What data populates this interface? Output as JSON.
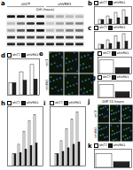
{
  "blot": {
    "title": "a",
    "groups": [
      "shCT",
      "shVRK1"
    ],
    "axis_label": "Diff (hours)",
    "bands": [
      [
        0.9,
        0.9,
        0.85,
        0.9,
        0.3,
        0.25,
        0.2,
        0.2
      ],
      [
        0.2,
        0.5,
        0.8,
        0.9,
        0.15,
        0.3,
        0.4,
        0.45
      ],
      [
        0.3,
        0.6,
        0.85,
        0.9,
        0.2,
        0.3,
        0.45,
        0.5
      ],
      [
        0.8,
        0.75,
        0.7,
        0.7,
        0.8,
        0.75,
        0.7,
        0.7
      ],
      [
        0.85,
        0.85,
        0.85,
        0.85,
        0.85,
        0.85,
        0.85,
        0.85
      ]
    ]
  },
  "micrographs": [
    {
      "title": "e",
      "rows": [
        "shCT",
        "shVRK1"
      ]
    },
    {
      "title": "j",
      "label": "Diff 72 hours",
      "rows": [
        "shCT",
        "shVRK1"
      ]
    }
  ],
  "chart_data": [
    {
      "type": "bar",
      "title": "b",
      "categories": [
        null,
        null,
        null,
        null
      ],
      "ylim": [
        0,
        4
      ],
      "tick_labels": false,
      "legend": "top",
      "series": [
        {
          "name": "shCT",
          "color": "#ffffff",
          "values": [
            1,
            1.8,
            2.6,
            3.2
          ]
        },
        {
          "name": "shVRK1",
          "color": "#222222",
          "values": [
            1,
            1.1,
            1.4,
            1.6
          ]
        }
      ]
    },
    {
      "type": "bar",
      "title": "c",
      "categories": [
        null,
        null,
        null,
        null
      ],
      "ylim": [
        0,
        4
      ],
      "tick_labels": false,
      "legend": "top",
      "series": [
        {
          "name": "shCT",
          "color": "#ffffff",
          "values": [
            1,
            2.0,
            2.9,
            3.4
          ]
        },
        {
          "name": "shVRK1",
          "color": "#222222",
          "values": [
            1,
            1.2,
            1.5,
            1.7
          ]
        }
      ]
    },
    {
      "type": "bar",
      "title": "d",
      "categories": [
        null,
        null,
        null
      ],
      "ylim": [
        0,
        3
      ],
      "tick_labels": false,
      "legend": "top",
      "series": [
        {
          "name": "shCT",
          "color": "#ffffff",
          "values": [
            1,
            1.9,
            2.5
          ]
        },
        {
          "name": "shVRK1",
          "color": "#222222",
          "values": [
            1,
            1.2,
            1.3
          ]
        }
      ]
    },
    {
      "type": "bar",
      "title": "f",
      "categories": [
        null
      ],
      "ylim": [
        0,
        100
      ],
      "tick_labels": false,
      "legend": "top",
      "series": [
        {
          "name": "shCT",
          "color": "#ffffff",
          "values": [
            80
          ]
        },
        {
          "name": "shVRK1",
          "color": "#222222",
          "values": [
            35
          ]
        }
      ]
    },
    {
      "type": "bar",
      "title": "g",
      "categories": [
        null
      ],
      "ylim": [
        0,
        60
      ],
      "tick_labels": false,
      "legend": "top",
      "series": [
        {
          "name": "shCT",
          "color": "#ffffff",
          "values": [
            45
          ]
        },
        {
          "name": "shVRK1",
          "color": "#222222",
          "values": [
            20
          ]
        }
      ]
    },
    {
      "type": "bar",
      "title": "h",
      "categories": [
        null,
        null,
        null,
        null,
        null
      ],
      "ylim": [
        0,
        5
      ],
      "tick_labels": false,
      "legend": "top",
      "series": [
        {
          "name": "shCT",
          "color": "#ffffff",
          "values": [
            1,
            1.8,
            2.9,
            3.8,
            4.3
          ]
        },
        {
          "name": "shVRK1",
          "color": "#222222",
          "values": [
            1,
            1.1,
            1.4,
            1.7,
            1.9
          ]
        }
      ]
    },
    {
      "type": "bar",
      "title": "i",
      "categories": [
        null,
        null,
        null,
        null,
        null
      ],
      "ylim": [
        0,
        5
      ],
      "tick_labels": false,
      "legend": "top",
      "series": [
        {
          "name": "shCT",
          "color": "#ffffff",
          "values": [
            1,
            2.1,
            3.1,
            3.9,
            4.5
          ]
        },
        {
          "name": "shVRK1",
          "color": "#222222",
          "values": [
            1,
            1.2,
            1.5,
            1.8,
            2.0
          ]
        }
      ]
    },
    {
      "type": "bar",
      "title": "k",
      "categories": [
        null
      ],
      "ylim": [
        0,
        100
      ],
      "tick_labels": false,
      "legend": "top",
      "series": [
        {
          "name": "shCT",
          "color": "#ffffff",
          "values": [
            75
          ]
        },
        {
          "name": "shVRK1",
          "color": "#222222",
          "values": [
            30
          ]
        }
      ]
    }
  ]
}
